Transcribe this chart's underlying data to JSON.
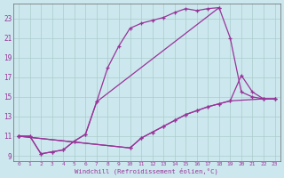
{
  "xlabel": "Windchill (Refroidissement éolien,°C)",
  "bg_color": "#cce8ee",
  "grid_color": "#aacccc",
  "line_color": "#993399",
  "spine_color": "#666666",
  "xlim": [
    -0.5,
    23.5
  ],
  "ylim": [
    8.5,
    24.5
  ],
  "xticks": [
    0,
    1,
    2,
    3,
    4,
    5,
    6,
    7,
    8,
    9,
    10,
    11,
    12,
    13,
    14,
    15,
    16,
    17,
    18,
    19,
    20,
    21,
    22,
    23
  ],
  "yticks": [
    9,
    11,
    13,
    15,
    17,
    19,
    21,
    23
  ],
  "curve1_x": [
    0,
    1,
    2,
    3,
    4,
    5,
    6,
    7,
    8,
    9,
    10,
    11,
    12,
    13,
    14,
    15,
    16,
    17,
    18
  ],
  "curve1_y": [
    11,
    11,
    9.2,
    9.4,
    9.6,
    10.5,
    11.2,
    14.5,
    18.0,
    20.2,
    22.0,
    22.5,
    22.8,
    23.1,
    23.6,
    24.0,
    23.8,
    24.0,
    24.1
  ],
  "curve2_x": [
    0,
    1,
    2,
    3,
    4,
    5,
    6,
    7,
    18,
    19,
    20,
    21,
    22,
    23
  ],
  "curve2_y": [
    11,
    11,
    9.2,
    9.4,
    9.6,
    10.5,
    11.2,
    14.5,
    24.1,
    21.0,
    15.5,
    15.0,
    14.8,
    14.8
  ],
  "curve3_x": [
    0,
    10,
    11,
    12,
    13,
    14,
    15,
    16,
    17,
    18,
    19,
    20,
    21,
    22,
    23
  ],
  "curve3_y": [
    11,
    9.8,
    10.8,
    11.4,
    12.0,
    12.6,
    13.2,
    13.6,
    14.0,
    14.3,
    14.6,
    17.2,
    15.5,
    14.8,
    14.8
  ],
  "curve4_x": [
    0,
    10,
    11,
    12,
    13,
    14,
    15,
    16,
    17,
    18,
    19,
    22,
    23
  ],
  "curve4_y": [
    11,
    9.8,
    10.8,
    11.4,
    12.0,
    12.6,
    13.2,
    13.6,
    14.0,
    14.3,
    14.6,
    14.8,
    14.8
  ]
}
